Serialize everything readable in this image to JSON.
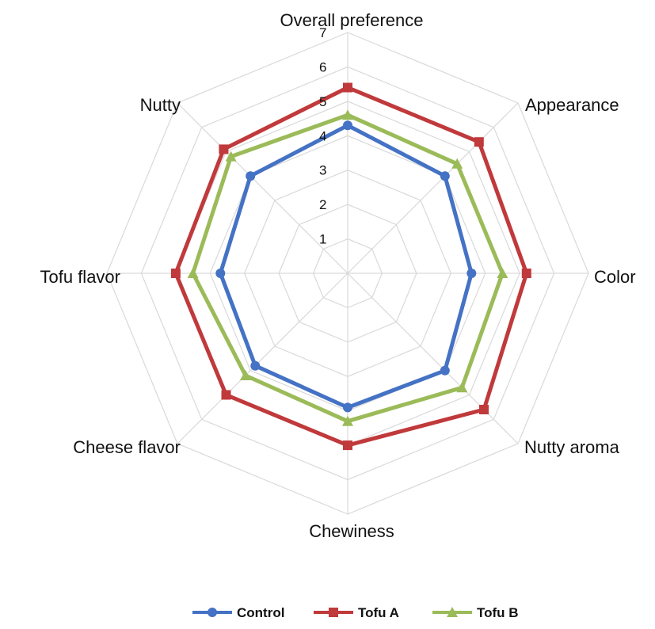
{
  "chart_data": {
    "type": "radar",
    "axes": [
      "Overall preference",
      "Appearance",
      "Color",
      "Nutty aroma",
      "Chewiness",
      "Cheese flavor",
      "Tofu flavor",
      "Nutty"
    ],
    "r_range": [
      0,
      7
    ],
    "ticks": [
      "1",
      "2",
      "3",
      "4",
      "5",
      "6",
      "7"
    ],
    "grid": true,
    "legend_position": "bottom",
    "series": [
      {
        "name": "Control",
        "color": "#4472C4",
        "marker": "circle",
        "values": [
          4.3,
          4.0,
          3.6,
          4.0,
          3.9,
          3.8,
          3.7,
          4.0
        ]
      },
      {
        "name": "Tofu A",
        "color": "#C0393B",
        "marker": "square",
        "values": [
          5.4,
          5.4,
          5.2,
          5.6,
          5.0,
          5.0,
          5.0,
          5.1
        ]
      },
      {
        "name": "Tofu B",
        "color": "#9BBB59",
        "marker": "triangle",
        "values": [
          4.6,
          4.5,
          4.5,
          4.7,
          4.3,
          4.2,
          4.5,
          4.8
        ]
      }
    ]
  }
}
